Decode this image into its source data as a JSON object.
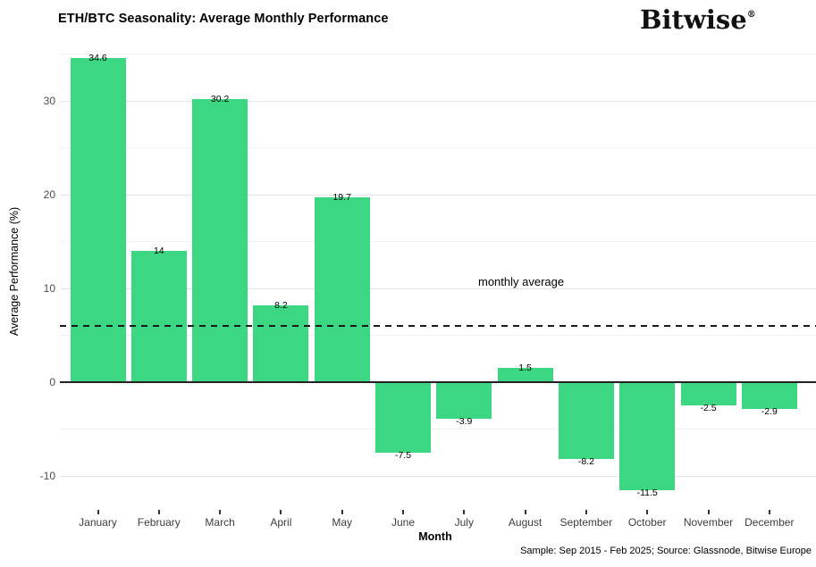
{
  "header": {
    "title": "ETH/BTC Seasonality: Average Monthly Performance",
    "logo_text": "Bitwise",
    "logo_registered": "®"
  },
  "chart_data": {
    "type": "bar",
    "title": "ETH/BTC Seasonality: Average Monthly Performance",
    "xlabel": "Month",
    "ylabel": "Average Performance (%)",
    "categories": [
      "January",
      "February",
      "March",
      "April",
      "May",
      "June",
      "July",
      "August",
      "September",
      "October",
      "November",
      "December"
    ],
    "values": [
      34.6,
      14,
      30.2,
      8.2,
      19.7,
      -7.5,
      -3.9,
      1.5,
      -8.2,
      -11.5,
      -2.5,
      -2.9
    ],
    "value_labels": [
      "34.6",
      "14",
      "30.2",
      "8.2",
      "19.7",
      "-7.5",
      "-3.9",
      "1.5",
      "-8.2",
      "-11.5",
      "-2.5",
      "-2.9"
    ],
    "bar_color": "#3cd783",
    "ylim": [
      -13.6,
      36.9
    ],
    "y_ticks": [
      -10,
      0,
      10,
      20,
      30
    ],
    "y_minor_ticks": [
      -5,
      5,
      15,
      25,
      35
    ],
    "grid": true,
    "legend": "none",
    "average_line": {
      "value": 5.98,
      "label": "monthly average",
      "style": "dashed",
      "color": "#1a1a1a"
    },
    "zero_line_color": "#222222"
  },
  "footer": {
    "source_note": "Sample: Sep 2015 - Feb 2025; Source: Glassnode, Bitwise Europe"
  }
}
